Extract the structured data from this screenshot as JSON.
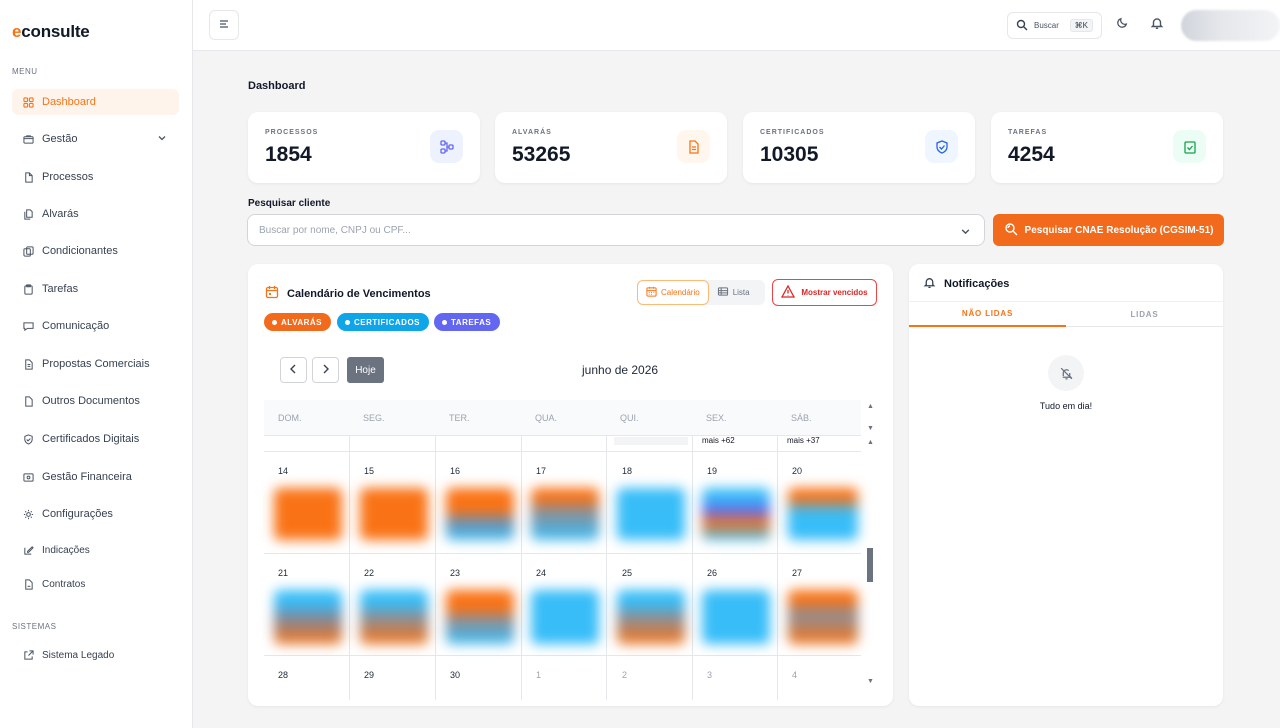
{
  "app": {
    "logo_prefix": "e",
    "logo_rest": "consulte"
  },
  "sidebar": {
    "menu_heading": "MENU",
    "items": [
      {
        "label": "Dashboard",
        "icon": "grid-icon",
        "active": true
      },
      {
        "label": "Gestão",
        "icon": "folder-icon"
      },
      {
        "label": "Processos",
        "icon": "document-icon"
      },
      {
        "label": "Alvarás",
        "icon": "documents-icon"
      },
      {
        "label": "Condicionantes",
        "icon": "copy-icon"
      },
      {
        "label": "Tarefas",
        "icon": "clipboard-icon"
      },
      {
        "label": "Comunicação",
        "icon": "chat-icon"
      },
      {
        "label": "Propostas Comerciais",
        "icon": "file-text-icon"
      },
      {
        "label": "Outros Documentos",
        "icon": "file-icon"
      },
      {
        "label": "Certificados Digitais",
        "icon": "shield-check-icon"
      },
      {
        "label": "Gestão Financeira",
        "icon": "finance-icon"
      },
      {
        "label": "Configurações",
        "icon": "gear-icon"
      },
      {
        "label": "Indicações",
        "icon": "edit-icon"
      },
      {
        "label": "Contratos",
        "icon": "contract-icon"
      }
    ],
    "system_heading": "SISTEMAS",
    "system_items": [
      {
        "label": "Sistema Legado",
        "icon": "external-link-icon"
      }
    ]
  },
  "topbar": {
    "search_label": "Buscar",
    "search_shortcut": "⌘K"
  },
  "dashboard": {
    "title": "Dashboard",
    "stats": [
      {
        "label": "PROCESSOS",
        "value": "1854",
        "color": "#6366f1",
        "bg": "#eef2ff"
      },
      {
        "label": "ALVARÁS",
        "value": "53265",
        "color": "#f97316",
        "bg": "#fff7ed"
      },
      {
        "label": "CERTIFICADOS",
        "value": "10305",
        "color": "#2563eb",
        "bg": "#eff6ff"
      },
      {
        "label": "TAREFAS",
        "value": "4254",
        "color": "#16a34a",
        "bg": "#ecfdf5"
      }
    ],
    "search": {
      "label": "Pesquisar cliente",
      "placeholder": "Buscar por nome, CNPJ ou CPF...",
      "cnae_button": "Pesquisar CNAE Resolução (CGSIM-51)"
    }
  },
  "calendar": {
    "title": "Calendário de Vencimentos",
    "view_calendar": "Calendário",
    "view_list": "Lista",
    "show_expired": "Mostrar vencidos",
    "legend": [
      {
        "label": "ALVARÁS",
        "color": "#f26b1d"
      },
      {
        "label": "CERTIFICADOS",
        "color": "#0ea5e9"
      },
      {
        "label": "TAREFAS",
        "color": "#6366f1"
      }
    ],
    "today_button": "Hoje",
    "month": "junho de 2026",
    "weekdays": [
      "DOM.",
      "SEG.",
      "TER.",
      "QUA.",
      "QUI.",
      "SEX.",
      "SÁB."
    ],
    "more_labels": {
      "fri": "mais +62",
      "sat": "mais +37"
    },
    "weeks": [
      [
        "14",
        "15",
        "16",
        "17",
        "18",
        "19",
        "20"
      ],
      [
        "21",
        "22",
        "23",
        "24",
        "25",
        "26",
        "27"
      ],
      [
        "28",
        "29",
        "30",
        "1",
        "2",
        "3",
        "4"
      ]
    ]
  },
  "notifications": {
    "title": "Notificações",
    "tab_unread": "NÃO LIDAS",
    "tab_read": "LIDAS",
    "empty": "Tudo em dia!"
  }
}
